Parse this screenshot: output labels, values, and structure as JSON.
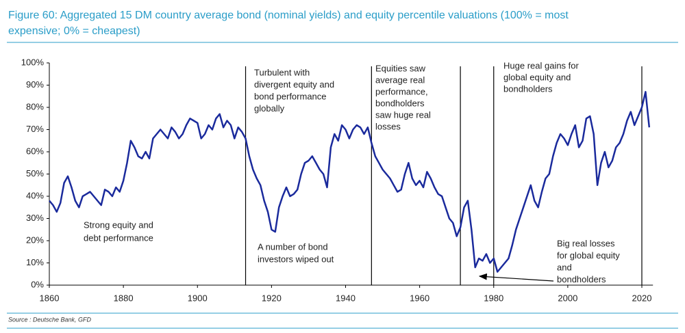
{
  "chart_data": {
    "type": "line",
    "title_lines": [
      "Figure 60: Aggregated 15 DM country average bond (nominal yields) and equity percentile valuations (100% = most",
      "expensive; 0% = cheapest)"
    ],
    "source": "Source : Deutsche Bank, GFD",
    "x": [
      1860,
      1861,
      1862,
      1863,
      1864,
      1865,
      1866,
      1867,
      1868,
      1869,
      1870,
      1871,
      1872,
      1873,
      1874,
      1875,
      1876,
      1877,
      1878,
      1879,
      1880,
      1881,
      1882,
      1883,
      1884,
      1885,
      1886,
      1887,
      1888,
      1889,
      1890,
      1891,
      1892,
      1893,
      1894,
      1895,
      1896,
      1897,
      1898,
      1899,
      1900,
      1901,
      1902,
      1903,
      1904,
      1905,
      1906,
      1907,
      1908,
      1909,
      1910,
      1911,
      1912,
      1913,
      1914,
      1915,
      1916,
      1917,
      1918,
      1919,
      1920,
      1921,
      1922,
      1923,
      1924,
      1925,
      1926,
      1927,
      1928,
      1929,
      1930,
      1931,
      1932,
      1933,
      1934,
      1935,
      1936,
      1937,
      1938,
      1939,
      1940,
      1941,
      1942,
      1943,
      1944,
      1945,
      1946,
      1947,
      1948,
      1949,
      1950,
      1951,
      1952,
      1953,
      1954,
      1955,
      1956,
      1957,
      1958,
      1959,
      1960,
      1961,
      1962,
      1963,
      1964,
      1965,
      1966,
      1967,
      1968,
      1969,
      1970,
      1971,
      1972,
      1973,
      1974,
      1975,
      1976,
      1977,
      1978,
      1979,
      1980,
      1981,
      1982,
      1983,
      1984,
      1985,
      1986,
      1987,
      1988,
      1989,
      1990,
      1991,
      1992,
      1993,
      1994,
      1995,
      1996,
      1997,
      1998,
      1999,
      2000,
      2001,
      2002,
      2003,
      2004,
      2005,
      2006,
      2007,
      2008,
      2009,
      2010,
      2011,
      2012,
      2013,
      2014,
      2015,
      2016,
      2017,
      2018,
      2019,
      2020,
      2021,
      2022
    ],
    "series": [
      {
        "color": "#1a2a9c",
        "values": [
          38,
          36,
          33,
          37,
          46,
          49,
          44,
          38,
          35,
          40,
          41,
          42,
          40,
          38,
          36,
          43,
          42,
          40,
          44,
          42,
          47,
          55,
          65,
          62,
          58,
          57,
          60,
          57,
          66,
          68,
          70,
          68,
          66,
          71,
          69,
          66,
          68,
          72,
          75,
          74,
          73,
          66,
          68,
          72,
          70,
          75,
          77,
          71,
          74,
          72,
          66,
          71,
          69,
          66,
          58,
          52,
          48,
          45,
          38,
          33,
          25,
          24,
          35,
          40,
          44,
          40,
          41,
          43,
          50,
          55,
          56,
          58,
          55,
          52,
          50,
          44,
          62,
          68,
          65,
          72,
          70,
          66,
          70,
          72,
          71,
          68,
          71,
          64,
          58,
          55,
          52,
          50,
          48,
          45,
          42,
          43,
          50,
          55,
          48,
          45,
          47,
          44,
          51,
          48,
          44,
          41,
          40,
          35,
          30,
          28,
          22,
          26,
          35,
          38,
          25,
          8,
          12,
          11,
          14,
          10,
          12,
          6,
          8,
          10,
          12,
          18,
          25,
          30,
          35,
          40,
          45,
          38,
          35,
          42,
          48,
          50,
          58,
          64,
          68,
          66,
          63,
          68,
          72,
          62,
          65,
          75,
          76,
          68,
          45,
          55,
          60,
          53,
          56,
          62,
          64,
          68,
          74,
          78,
          72,
          76,
          80,
          87,
          71
        ]
      }
    ],
    "xlim": [
      1860,
      2023
    ],
    "ylim": [
      0,
      100
    ],
    "xticks": [
      1860,
      1880,
      1900,
      1920,
      1940,
      1960,
      1980,
      2000,
      2020
    ],
    "yticks": [
      {
        "value": 0,
        "label": "0%"
      },
      {
        "value": 10,
        "label": "10%"
      },
      {
        "value": 20,
        "label": "20%"
      },
      {
        "value": 30,
        "label": "30%"
      },
      {
        "value": 40,
        "label": "40%"
      },
      {
        "value": 50,
        "label": "50%"
      },
      {
        "value": 60,
        "label": "60%"
      },
      {
        "value": 70,
        "label": "70%"
      },
      {
        "value": 80,
        "label": "80%"
      },
      {
        "value": 90,
        "label": "90%"
      },
      {
        "value": 100,
        "label": "100%"
      }
    ],
    "vlines": [
      1913,
      1947,
      1971,
      1980,
      2020
    ],
    "annotations": [
      {
        "lines": [
          "Strong equity and",
          "debt performance"
        ]
      },
      {
        "lines": [
          "Turbulent with",
          "divergent equity and",
          "bond performance",
          "globally"
        ]
      },
      {
        "lines": [
          "A number of bond",
          "investors wiped out"
        ]
      },
      {
        "lines": [
          "Equities saw",
          "average real",
          "performance,",
          "bondholders",
          "saw huge real",
          "losses"
        ]
      },
      {
        "lines": [
          "Huge real gains for",
          "global equity and",
          "bondholders"
        ]
      },
      {
        "lines": [
          "Big real losses",
          "for global equity",
          "and",
          "bondholders"
        ]
      }
    ]
  }
}
